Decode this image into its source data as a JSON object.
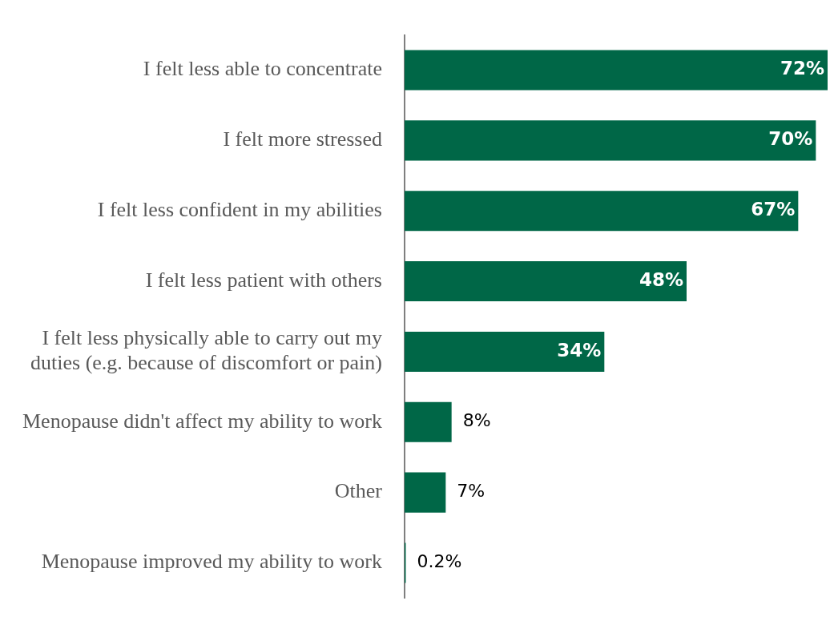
{
  "chart_data": {
    "type": "bar",
    "orientation": "horizontal",
    "categories": [
      "I felt less able to concentrate",
      "I felt more stressed",
      "I felt less confident in my abilities",
      "I felt less patient with others",
      "I felt less physically able to carry out my duties (e.g. because of discomfort or pain)",
      "Menopause didn't affect my ability to work",
      "Other",
      "Menopause improved my ability to work"
    ],
    "values": [
      72,
      70,
      67,
      48,
      34,
      8,
      7,
      0.2
    ],
    "value_labels": [
      "72%",
      "70%",
      "67%",
      "48%",
      "34%",
      "8%",
      "7%",
      "0.2%"
    ],
    "color": "#006747",
    "grid": false,
    "legend": false,
    "tick_labels": "y"
  }
}
